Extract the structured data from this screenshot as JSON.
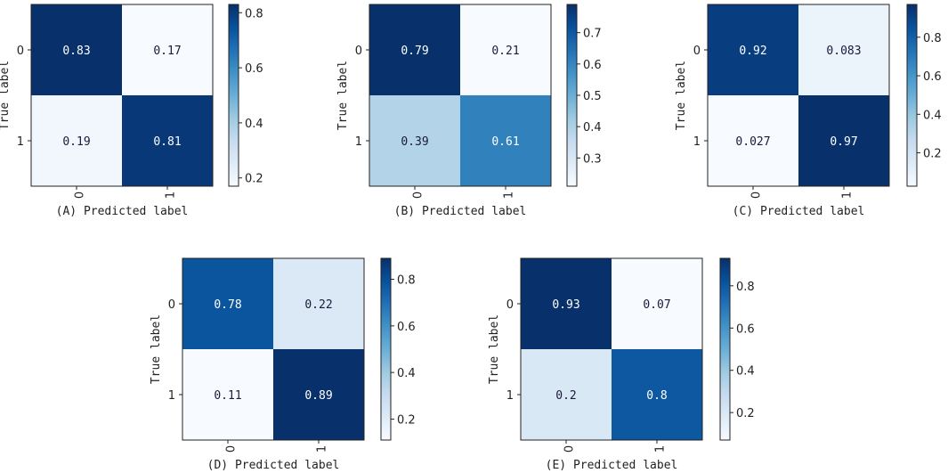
{
  "colormap": "Blues",
  "colors": {
    "stops": [
      "#f7fbff",
      "#deebf7",
      "#c6dbef",
      "#9ecae1",
      "#6baed6",
      "#4292c6",
      "#2171b5",
      "#08519c",
      "#08306b"
    ],
    "dark_text": "#1a1a3a",
    "light_text": "#ffffff"
  },
  "chart_data": [
    {
      "type": "heatmap",
      "panel": "A",
      "xlabel": "(A) Predicted label",
      "ylabel": "True label",
      "x_ticks": [
        "0",
        "1"
      ],
      "y_ticks": [
        "0",
        "1"
      ],
      "matrix": [
        [
          0.83,
          0.17
        ],
        [
          0.19,
          0.81
        ]
      ],
      "cell_labels": [
        [
          "0.83",
          "0.17"
        ],
        [
          "0.19",
          "0.81"
        ]
      ],
      "colorbar": {
        "vmin": 0.17,
        "vmax": 0.83,
        "ticks": [
          0.2,
          0.4,
          0.6,
          0.8
        ],
        "tick_labels": [
          "0.2",
          "0.4",
          "0.6",
          "0.8"
        ]
      }
    },
    {
      "type": "heatmap",
      "panel": "B",
      "xlabel": "(B) Predicted label",
      "ylabel": "True label",
      "x_ticks": [
        "0",
        "1"
      ],
      "y_ticks": [
        "0",
        "1"
      ],
      "matrix": [
        [
          0.79,
          0.21
        ],
        [
          0.39,
          0.61
        ]
      ],
      "cell_labels": [
        [
          "0.79",
          "0.21"
        ],
        [
          "0.39",
          "0.61"
        ]
      ],
      "colorbar": {
        "vmin": 0.21,
        "vmax": 0.79,
        "ticks": [
          0.3,
          0.4,
          0.5,
          0.6,
          0.7
        ],
        "tick_labels": [
          "0.3",
          "0.4",
          "0.5",
          "0.6",
          "0.7"
        ]
      }
    },
    {
      "type": "heatmap",
      "panel": "C",
      "xlabel": "(C) Predicted label",
      "ylabel": "True label",
      "x_ticks": [
        "0",
        "1"
      ],
      "y_ticks": [
        "0",
        "1"
      ],
      "matrix": [
        [
          0.92,
          0.083
        ],
        [
          0.027,
          0.97
        ]
      ],
      "cell_labels": [
        [
          "0.92",
          "0.083"
        ],
        [
          "0.027",
          "0.97"
        ]
      ],
      "colorbar": {
        "vmin": 0.027,
        "vmax": 0.97,
        "ticks": [
          0.2,
          0.4,
          0.6,
          0.8
        ],
        "tick_labels": [
          "0.2",
          "0.4",
          "0.6",
          "0.8"
        ]
      }
    },
    {
      "type": "heatmap",
      "panel": "D",
      "xlabel": "(D) Predicted label",
      "ylabel": "True label",
      "x_ticks": [
        "0",
        "1"
      ],
      "y_ticks": [
        "0",
        "1"
      ],
      "matrix": [
        [
          0.78,
          0.22
        ],
        [
          0.11,
          0.89
        ]
      ],
      "cell_labels": [
        [
          "0.78",
          "0.22"
        ],
        [
          "0.11",
          "0.89"
        ]
      ],
      "colorbar": {
        "vmin": 0.11,
        "vmax": 0.89,
        "ticks": [
          0.2,
          0.4,
          0.6,
          0.8
        ],
        "tick_labels": [
          "0.2",
          "0.4",
          "0.6",
          "0.8"
        ]
      }
    },
    {
      "type": "heatmap",
      "panel": "E",
      "xlabel": "(E) Predicted label",
      "ylabel": "True label",
      "x_ticks": [
        "0",
        "1"
      ],
      "y_ticks": [
        "0",
        "1"
      ],
      "matrix": [
        [
          0.93,
          0.07
        ],
        [
          0.2,
          0.8
        ]
      ],
      "cell_labels": [
        [
          "0.93",
          "0.07"
        ],
        [
          "0.2",
          "0.8"
        ]
      ],
      "colorbar": {
        "vmin": 0.07,
        "vmax": 0.93,
        "ticks": [
          0.2,
          0.4,
          0.6,
          0.8
        ],
        "tick_labels": [
          "0.2",
          "0.4",
          "0.6",
          "0.8"
        ]
      }
    }
  ]
}
